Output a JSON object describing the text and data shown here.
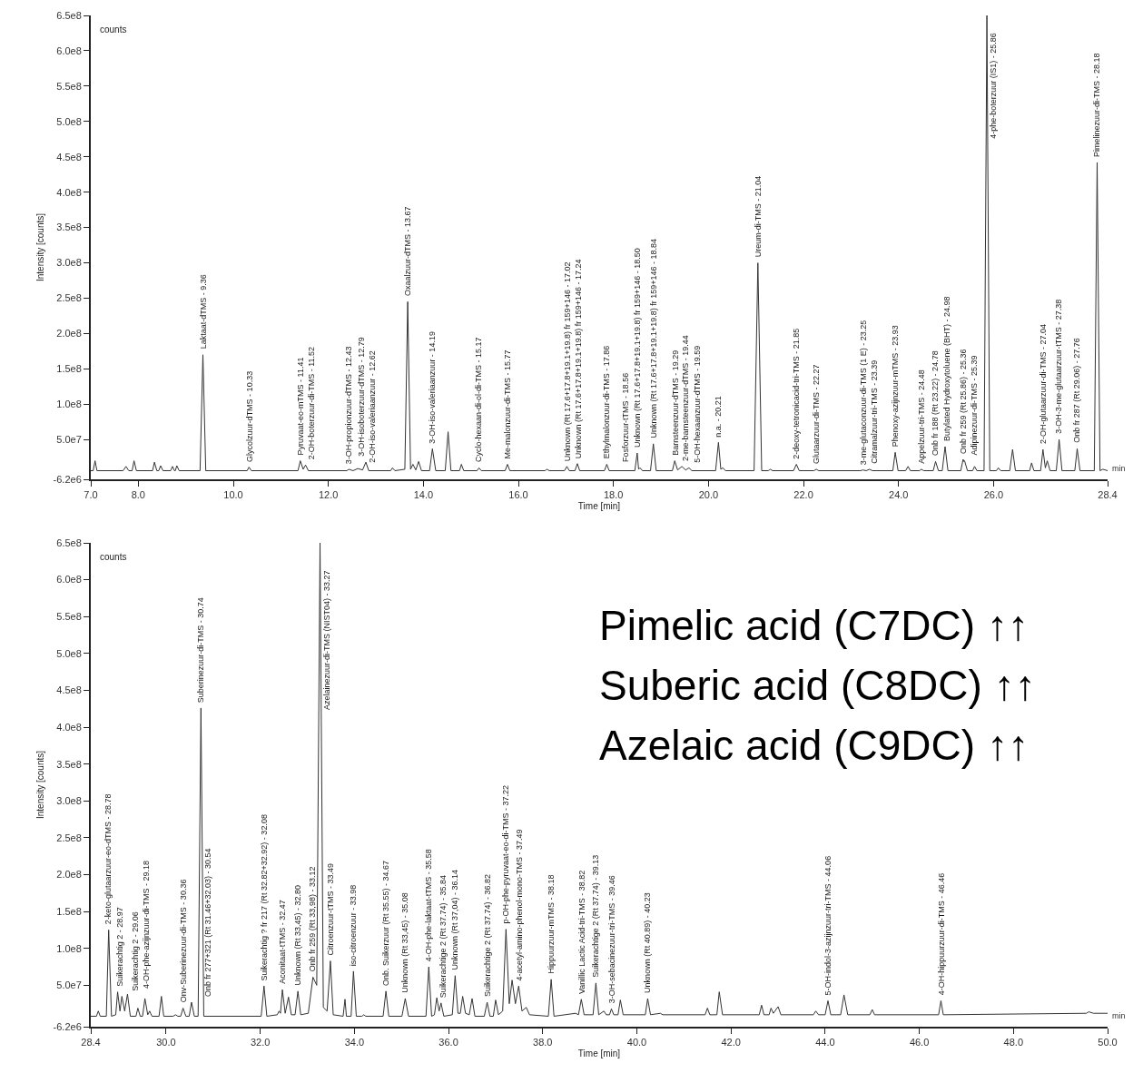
{
  "chart_data": [
    {
      "type": "line",
      "xlabel": "Time [min]",
      "ylabel": "Intensity [counts]",
      "xlim": [
        7,
        28.4
      ],
      "xticks": [
        {
          "value": 7,
          "label": "7.0"
        },
        {
          "value": 8,
          "label": "8.0"
        },
        {
          "value": 10,
          "label": "10.0"
        },
        {
          "value": 12,
          "label": "12.0"
        },
        {
          "value": 14,
          "label": "14.0"
        },
        {
          "value": 16,
          "label": "16.0"
        },
        {
          "value": 18,
          "label": "18.0"
        },
        {
          "value": 20,
          "label": "20.0"
        },
        {
          "value": 22,
          "label": "22.0"
        },
        {
          "value": 24,
          "label": "24.0"
        },
        {
          "value": 26,
          "label": "26.0"
        },
        28.4
      ],
      "ylim": [
        -6200000.0,
        650000000.0
      ],
      "yticks": [
        {
          "value": -6200000.0,
          "label": "-6.2e6"
        },
        {
          "value": 50000000.0,
          "label": "5.0e7"
        },
        {
          "value": 100000000.0,
          "label": "1.0e8"
        },
        {
          "value": 150000000.0,
          "label": "1.5e8"
        },
        {
          "value": 200000000.0,
          "label": "2.0e8"
        },
        {
          "value": 250000000.0,
          "label": "2.5e8"
        },
        {
          "value": 300000000.0,
          "label": "3.0e8"
        },
        {
          "value": 350000000.0,
          "label": "3.5e8"
        },
        {
          "value": 400000000.0,
          "label": "4.0e8"
        },
        {
          "value": 450000000.0,
          "label": "4.5e8"
        },
        {
          "value": 500000000.0,
          "label": "5.0e8"
        },
        {
          "value": 550000000.0,
          "label": "5.5e8"
        },
        {
          "value": 600000000.0,
          "label": "6.0e8"
        },
        {
          "value": 650000000.0,
          "label": "6.5e8"
        }
      ],
      "x": [
        7.0,
        7.05,
        7.09,
        7.13,
        7.68,
        7.74,
        7.8,
        7.87,
        7.91,
        7.96,
        8.3,
        8.34,
        8.39,
        8.43,
        8.47,
        8.52,
        8.68,
        8.72,
        8.76,
        8.78,
        8.81,
        8.86,
        9.3,
        9.36,
        9.42,
        10.29,
        10.33,
        10.38,
        11.36,
        11.41,
        11.47,
        11.52,
        11.58,
        12.39,
        12.43,
        12.52,
        12.62,
        12.72,
        12.79,
        12.85,
        13.31,
        13.35,
        13.4,
        13.61,
        13.67,
        13.73,
        13.78,
        13.84,
        13.9,
        13.96,
        14.13,
        14.19,
        14.26,
        14.46,
        14.52,
        14.58,
        14.76,
        14.8,
        14.85,
        15.13,
        15.17,
        15.22,
        15.72,
        15.77,
        15.82,
        16.56,
        16.6,
        16.65,
        16.97,
        17.02,
        17.07,
        17.19,
        17.24,
        17.29,
        17.81,
        17.86,
        17.91,
        18.45,
        18.5,
        18.53,
        18.56,
        18.61,
        18.78,
        18.84,
        18.9,
        19.24,
        19.29,
        19.35,
        19.44,
        19.52,
        19.59,
        19.65,
        20.15,
        20.21,
        20.26,
        20.3,
        20.36,
        20.96,
        21.04,
        21.12,
        21.26,
        21.3,
        21.35,
        21.79,
        21.85,
        21.91,
        22.22,
        22.27,
        22.32,
        23.2,
        23.25,
        23.32,
        23.39,
        23.45,
        23.88,
        23.93,
        23.99,
        24.15,
        24.2,
        24.25,
        24.44,
        24.48,
        24.53,
        24.73,
        24.78,
        24.84,
        24.92,
        24.98,
        25.04,
        25.31,
        25.36,
        25.375,
        25.39,
        25.45,
        25.56,
        25.6,
        25.65,
        25.8,
        25.86,
        25.92,
        26.06,
        26.1,
        26.15,
        26.34,
        26.4,
        26.46,
        26.76,
        26.8,
        26.85,
        26.99,
        27.04,
        27.09,
        27.13,
        27.19,
        27.32,
        27.38,
        27.44,
        27.71,
        27.76,
        27.82,
        28.12,
        28.18,
        28.24,
        28.3,
        28.4
      ],
      "series": [
        {
          "color": "#333333",
          "values": [
            6000000.0,
            6000000.0,
            20000000.0,
            6000000.0,
            6000000.0,
            12000000.0,
            6000000.0,
            6000000.0,
            20000000.0,
            6000000.0,
            6000000.0,
            18000000.0,
            6000000.0,
            6000000.0,
            13000000.0,
            6000000.0,
            6000000.0,
            12000000.0,
            6000000.0,
            6000000.0,
            13000000.0,
            6000000.0,
            6000000.0,
            170000000.0,
            6000000.0,
            6000000.0,
            11000000.0,
            6000000.0,
            6000000.0,
            20000000.0,
            8000000.0,
            14000000.0,
            6000000.0,
            6000000.0,
            8000000.0,
            6000000.0,
            9000000.0,
            7000000.0,
            18000000.0,
            6000000.0,
            6000000.0,
            10000000.0,
            6000000.0,
            8000000.0,
            245000000.0,
            8000000.0,
            15000000.0,
            7000000.0,
            19000000.0,
            6000000.0,
            6000000.0,
            37000000.0,
            6000000.0,
            6000000.0,
            61000000.0,
            6000000.0,
            6000000.0,
            15000000.0,
            6000000.0,
            6000000.0,
            10000000.0,
            6000000.0,
            6000000.0,
            15000000.0,
            6000000.0,
            6000000.0,
            8000000.0,
            6000000.0,
            6000000.0,
            12000000.0,
            6000000.0,
            6000000.0,
            16000000.0,
            6000000.0,
            6000000.0,
            15000000.0,
            6000000.0,
            6000000.0,
            31000000.0,
            8000000.0,
            10000000.0,
            6000000.0,
            6000000.0,
            44000000.0,
            6000000.0,
            6000000.0,
            20000000.0,
            7000000.0,
            12000000.0,
            7000000.0,
            10000000.0,
            6000000.0,
            6000000.0,
            46000000.0,
            8000000.0,
            10000000.0,
            6000000.0,
            6000000.0,
            300000000.0,
            6000000.0,
            6000000.0,
            8000000.0,
            6000000.0,
            6000000.0,
            15000000.0,
            6000000.0,
            6000000.0,
            8000000.0,
            6000000.0,
            6000000.0,
            7000000.0,
            6000000.0,
            8000000.0,
            6000000.0,
            6000000.0,
            32000000.0,
            6000000.0,
            6000000.0,
            12000000.0,
            6000000.0,
            6000000.0,
            8000000.0,
            6000000.0,
            6000000.0,
            19000000.0,
            6000000.0,
            6000000.0,
            40000000.0,
            6000000.0,
            6000000.0,
            22000000.0,
            19000000.0,
            20000000.0,
            6000000.0,
            6000000.0,
            12000000.0,
            6000000.0,
            6000000.0,
            650000000.0,
            6000000.0,
            6000000.0,
            10000000.0,
            6000000.0,
            6000000.0,
            36000000.0,
            6000000.0,
            6000000.0,
            17000000.0,
            6000000.0,
            6000000.0,
            36000000.0,
            10000000.0,
            20000000.0,
            6000000.0,
            6000000.0,
            50000000.0,
            6000000.0,
            6000000.0,
            37000000.0,
            6000000.0,
            6000000.0,
            442000000.0,
            6000000.0,
            8000000.0,
            6000000.0
          ]
        }
      ],
      "annotations": [
        "counts",
        "min",
        {
          "text": "Laktaat-dTMS - 9.36",
          "x": 9.36,
          "y": 170000000.0
        },
        {
          "text": "Glycolzuur-dTMS - 10.33",
          "x": 10.33,
          "y": 11000000.0
        },
        {
          "text": "Pyruvaat-eo-mTMS - 11.41",
          "x": 11.41,
          "y": 20000000.0
        },
        {
          "text": "2-OH-boterzuur-di-TMS - 11.52",
          "x": 11.52,
          "y": 14000000.0
        },
        {
          "text": "3-OH-propionzuur-dTMS - 12.43",
          "x": 12.43,
          "y": 8000000.0
        },
        {
          "text": "2-OH-iso-valeriaanzuur - 12.62",
          "x": 12.62,
          "y": 9000000.0
        },
        {
          "text": "3-OH-isoboterzuur-dTMS - 12.79",
          "x": 12.79,
          "y": 18000000.0
        },
        {
          "text": "Oxaalzuur-dTMS - 13.67",
          "x": 13.67,
          "y": 245000000.0
        },
        {
          "text": "3-OH-iso-valeriaanzuur - 14.19",
          "x": 14.19,
          "y": 37000000.0
        },
        {
          "text": "Cyclo-hexaan-di-ol-di-TMS - 15.17",
          "x": 15.17,
          "y": 10000000.0
        },
        {
          "text": "Me-malonzuur-di-TMS - 15.77",
          "x": 15.77,
          "y": 15000000.0
        },
        {
          "text": "Unknown (Rt 17.6+17.8+19.1+19.8) fr 159+146 - 17.02",
          "x": 17.02,
          "y": 12000000.0
        },
        {
          "text": "Unknown (Rt 17.6+17.8+19.1+19.8) fr 159+146 - 17.24",
          "x": 17.24,
          "y": 16000000.0
        },
        {
          "text": "Ethylmalonzuur-di-TMS - 17.86",
          "x": 17.86,
          "y": 15000000.0
        },
        {
          "text": "Unknown (Rt 17.6+17.8+19.1+19.8) fr 159+146 - 18.50",
          "x": 18.5,
          "y": 31000000.0
        },
        {
          "text": "Fosforzuur-tTMS - 18.56",
          "x": 18.56,
          "y": 10000000.0
        },
        {
          "text": "Unknown (Rt 17.6+17.8+19.1+19.8) fr 159+146 - 18.84",
          "x": 18.84,
          "y": 44000000.0
        },
        {
          "text": "Barnsteenzuur-dTMS - 19.29",
          "x": 19.29,
          "y": 20000000.0
        },
        {
          "text": "2-me-barnsteenzuur-dTMS - 19.44",
          "x": 19.44,
          "y": 12000000.0
        },
        {
          "text": "5-OH-hexaanzuur-dTMS - 19.59",
          "x": 19.59,
          "y": 10000000.0
        },
        {
          "text": "n.a. - 20.21",
          "x": 20.21,
          "y": 46000000.0
        },
        {
          "text": "Ureum-di-TMS - 21.04",
          "x": 21.04,
          "y": 300000000.0
        },
        {
          "text": "2-deoxy-tetronicacid-tri-TMS - 21.85",
          "x": 21.85,
          "y": 15000000.0
        },
        {
          "text": "Glutaarzuur-di-TMS - 22.27",
          "x": 22.27,
          "y": 8000000.0
        },
        {
          "text": "3-me-glutaconzuur-di-TMS (1 E) - 23.25",
          "x": 23.25,
          "y": 7000000.0
        },
        {
          "text": "Citramalzuur-tri-TMS - 23.39",
          "x": 23.39,
          "y": 8000000.0
        },
        {
          "text": "Phenoxy-azijnzuur-mTMS - 23.93",
          "x": 23.93,
          "y": 32000000.0
        },
        {
          "text": "Appelzuur-tri-TMS - 24.48",
          "x": 24.48,
          "y": 8000000.0
        },
        {
          "text": "Onb fr 188 (Rt 23.22) - 24.78",
          "x": 24.78,
          "y": 19000000.0
        },
        {
          "text": "Butylated Hydroxytoluene (BHT) - 24.98",
          "x": 24.98,
          "y": 40000000.0
        },
        {
          "text": "Onb fr 259 (Rt 25.86) - 25.36",
          "x": 25.36,
          "y": 22000000.0
        },
        {
          "text": "Adipinezuur-di-TMS - 25.39",
          "x": 25.39,
          "y": 20000000.0
        },
        {
          "text": "4-phe-boterzuur (IS1) - 25.86",
          "x": 25.86,
          "y": 468000000.0
        },
        {
          "text": "2-OH-glutaarzuur-di-TMS - 27.04",
          "x": 27.04,
          "y": 36000000.0
        },
        {
          "text": "3-OH-3-me-glutaarzuur-tTMS - 27.38",
          "x": 27.38,
          "y": 50000000.0
        },
        {
          "text": "Onb fr 287 (Rt 29.06) - 27.76",
          "x": 27.76,
          "y": 37000000.0
        },
        {
          "text": "Pimelinezuur-di-TMS - 28.18",
          "x": 28.18,
          "y": 442000000.0
        }
      ]
    },
    {
      "type": "line",
      "xlabel": "Time [min]",
      "ylabel": "Intensity [counts]",
      "xlim": [
        28.4,
        50
      ],
      "xticks": [
        28.4,
        {
          "value": 30,
          "label": "30.0"
        },
        {
          "value": 32,
          "label": "32.0"
        },
        {
          "value": 34,
          "label": "34.0"
        },
        {
          "value": 36,
          "label": "36.0"
        },
        {
          "value": 38,
          "label": "38.0"
        },
        {
          "value": 40,
          "label": "40.0"
        },
        {
          "value": 42,
          "label": "42.0"
        },
        {
          "value": 44,
          "label": "44.0"
        },
        {
          "value": 46,
          "label": "46.0"
        },
        {
          "value": 48,
          "label": "48.0"
        },
        {
          "value": 50,
          "label": "50.0"
        }
      ],
      "ylim": [
        -6200000.0,
        650000000.0
      ],
      "yticks": [
        {
          "value": -6200000.0,
          "label": "-6.2e6"
        },
        {
          "value": 50000000.0,
          "label": "5.0e7"
        },
        {
          "value": 100000000.0,
          "label": "1.0e8"
        },
        {
          "value": 150000000.0,
          "label": "1.5e8"
        },
        {
          "value": 200000000.0,
          "label": "2.0e8"
        },
        {
          "value": 250000000.0,
          "label": "2.5e8"
        },
        {
          "value": 300000000.0,
          "label": "3.0e8"
        },
        {
          "value": 350000000.0,
          "label": "3.5e8"
        },
        {
          "value": 400000000.0,
          "label": "4.0e8"
        },
        {
          "value": 450000000.0,
          "label": "4.5e8"
        },
        {
          "value": 500000000.0,
          "label": "5.0e8"
        },
        {
          "value": 550000000.0,
          "label": "5.5e8"
        },
        {
          "value": 600000000.0,
          "label": "6.0e8"
        },
        {
          "value": 650000000.0,
          "label": "6.5e8"
        }
      ],
      "x": [
        28.4,
        28.52,
        28.56,
        28.6,
        28.73,
        28.78,
        28.84,
        28.93,
        28.97,
        29.02,
        29.06,
        29.12,
        29.18,
        29.24,
        29.36,
        29.4,
        29.45,
        29.5,
        29.55,
        29.61,
        29.65,
        29.7,
        29.85,
        29.9,
        29.95,
        30.15,
        30.2,
        30.25,
        30.31,
        30.36,
        30.42,
        30.49,
        30.54,
        30.6,
        30.68,
        30.74,
        30.8,
        32.02,
        32.08,
        32.14,
        32.36,
        32.4,
        32.43,
        32.47,
        32.53,
        32.6,
        32.66,
        32.74,
        32.8,
        32.86,
        33.02,
        33.12,
        33.2,
        33.27,
        33.34,
        33.42,
        33.49,
        33.55,
        33.76,
        33.8,
        33.83,
        33.93,
        33.98,
        34.04,
        34.16,
        34.2,
        34.24,
        34.61,
        34.67,
        34.73,
        35.01,
        35.08,
        35.15,
        35.52,
        35.58,
        35.64,
        35.7,
        35.75,
        35.8,
        35.84,
        35.9,
        36.08,
        36.14,
        36.2,
        36.25,
        36.3,
        36.36,
        36.44,
        36.5,
        36.56,
        36.76,
        36.82,
        36.88,
        36.95,
        37.0,
        37.06,
        37.15,
        37.22,
        37.29,
        37.35,
        37.42,
        37.49,
        37.56,
        37.65,
        37.72,
        38.12,
        38.18,
        38.24,
        38.7,
        38.76,
        38.82,
        38.88,
        39.07,
        39.13,
        39.19,
        39.3,
        39.35,
        39.42,
        39.46,
        39.51,
        39.6,
        39.65,
        39.71,
        40.18,
        40.23,
        40.29,
        40.5,
        40.55,
        41.45,
        41.5,
        41.55,
        41.7,
        41.75,
        41.82,
        42.6,
        42.65,
        42.7,
        42.81,
        42.85,
        42.9,
        43.0,
        43.06,
        43.75,
        43.8,
        43.86,
        44.0,
        44.06,
        44.12,
        44.33,
        44.4,
        44.48,
        44.95,
        45.0,
        45.05,
        46.41,
        46.46,
        46.51,
        49.55,
        49.6,
        49.7,
        50.0
      ],
      "series": [
        {
          "color": "#333333",
          "values": [
            8000000.0,
            8000000.0,
            15000000.0,
            8000000.0,
            8000000.0,
            125000000.0,
            8000000.0,
            10000000.0,
            41000000.0,
            15000000.0,
            35000000.0,
            15000000.0,
            38000000.0,
            8000000.0,
            8000000.0,
            19000000.0,
            8000000.0,
            8000000.0,
            32000000.0,
            10000000.0,
            15000000.0,
            8000000.0,
            8000000.0,
            35000000.0,
            8000000.0,
            8000000.0,
            10000000.0,
            8000000.0,
            8000000.0,
            19000000.0,
            8000000.0,
            8000000.0,
            27000000.0,
            8000000.0,
            8000000.0,
            426000000.0,
            8000000.0,
            8000000.0,
            49000000.0,
            8000000.0,
            10000000.0,
            15000000.0,
            12000000.0,
            44000000.0,
            12000000.0,
            34000000.0,
            10000000.0,
            10000000.0,
            42000000.0,
            10000000.0,
            12000000.0,
            61000000.0,
            50000000.0,
            650000000.0,
            20000000.0,
            15000000.0,
            83000000.0,
            10000000.0,
            8000000.0,
            31000000.0,
            8000000.0,
            8000000.0,
            69000000.0,
            8000000.0,
            8000000.0,
            10000000.0,
            8000000.0,
            8000000.0,
            42000000.0,
            8000000.0,
            8000000.0,
            32000000.0,
            8000000.0,
            8000000.0,
            75000000.0,
            8000000.0,
            10000000.0,
            33000000.0,
            15000000.0,
            26000000.0,
            8000000.0,
            10000000.0,
            63000000.0,
            12000000.0,
            12000000.0,
            35000000.0,
            12000000.0,
            10000000.0,
            32000000.0,
            8000000.0,
            8000000.0,
            27000000.0,
            8000000.0,
            8000000.0,
            30000000.0,
            10000000.0,
            15000000.0,
            126000000.0,
            25000000.0,
            57000000.0,
            25000000.0,
            49000000.0,
            15000000.0,
            20000000.0,
            10000000.0,
            8000000.0,
            58000000.0,
            8000000.0,
            12000000.0,
            10000000.0,
            31000000.0,
            10000000.0,
            10000000.0,
            53000000.0,
            10000000.0,
            15000000.0,
            10000000.0,
            10000000.0,
            18000000.0,
            10000000.0,
            10000000.0,
            30000000.0,
            10000000.0,
            10000000.0,
            32000000.0,
            10000000.0,
            12000000.0,
            10000000.0,
            10000000.0,
            19000000.0,
            10000000.0,
            10000000.0,
            41000000.0,
            10000000.0,
            10000000.0,
            23000000.0,
            10000000.0,
            10000000.0,
            19000000.0,
            12000000.0,
            21000000.0,
            10000000.0,
            10000000.0,
            15000000.0,
            10000000.0,
            10000000.0,
            29000000.0,
            10000000.0,
            10000000.0,
            37000000.0,
            10000000.0,
            10000000.0,
            17000000.0,
            10000000.0,
            10000000.0,
            29000000.0,
            10000000.0,
            12000000.0,
            14000000.0,
            12000000.0,
            12000000.0
          ]
        }
      ],
      "annotations": [
        "counts",
        "min",
        "Pimelic acid (C7DC) ↑↑",
        "Suberic acid (C8DC) ↑↑",
        "Azelaic acid (C9DC) ↑↑",
        {
          "text": "2-keto-glutaarzuur-eo-dTMS - 28.78",
          "x": 28.78,
          "y": 125000000.0
        },
        {
          "text": "Suikerachtig 2 - 28.97",
          "x": 28.97,
          "y": 41000000.0
        },
        {
          "text": "Suikerachtig 2 - 29.06",
          "x": 29.06,
          "y": 35000000.0
        },
        {
          "text": "4-OH-phe-azijnzuur-di-TMS - 29.18",
          "x": 29.18,
          "y": 38000000.0
        },
        {
          "text": "Onv-Suberinezuur-di-TMS - 30.36",
          "x": 30.36,
          "y": 19000000.0
        },
        {
          "text": "Onb fr 277+321 (Rt 31.46+32.03) - 30.54",
          "x": 30.54,
          "y": 27000000.0
        },
        {
          "text": "Suberinezuur-di-TMS - 30.74",
          "x": 30.74,
          "y": 426000000.0
        },
        {
          "text": "Suikerachtig ? fr 217 (Rt 32.82+32.92) - 32.08",
          "x": 32.08,
          "y": 49000000.0
        },
        {
          "text": "Aconitaat-tTMS - 32.47",
          "x": 32.47,
          "y": 44000000.0
        },
        {
          "text": "Unknown (Rt 33,45) - 32.80",
          "x": 32.8,
          "y": 42000000.0
        },
        {
          "text": "Onb fr 259 (Rt 33,98) - 33.12",
          "x": 33.12,
          "y": 61000000.0
        },
        {
          "text": "Azelainezuur-di-TMS (NIST04) - 33.27",
          "x": 33.27,
          "y": 416000000.0
        },
        {
          "text": "Citroenzuur-tTMS - 33.49",
          "x": 33.49,
          "y": 83000000.0
        },
        {
          "text": "iso-citroenzuur - 33.98",
          "x": 33.98,
          "y": 69000000.0
        },
        {
          "text": "Onb. Suikerzuur (Rt 35.55) - 34.67",
          "x": 34.67,
          "y": 42000000.0
        },
        {
          "text": "Unknown (Rt 33,45) - 35.08",
          "x": 35.08,
          "y": 32000000.0
        },
        {
          "text": "4-OH-phe-laktaat-tTMS - 35.58",
          "x": 35.58,
          "y": 75000000.0
        },
        {
          "text": "Suikerachtige 2 (Rt 37.74) - 35.84",
          "x": 35.84,
          "y": 26000000.0
        },
        {
          "text": "Unknown (Rt 37,04) - 36.14",
          "x": 36.14,
          "y": 63000000.0
        },
        {
          "text": "Suikerachtige 2 (Rt 37.74) - 36.82",
          "x": 36.82,
          "y": 27000000.0
        },
        {
          "text": "p-OH-phe-pyruvaat-eo-di-TMS - 37.22",
          "x": 37.22,
          "y": 126000000.0
        },
        {
          "text": "4-acetyl-amino-phenol-mono-TMS - 37.49",
          "x": 37.49,
          "y": 49000000.0
        },
        {
          "text": "Hippuurzuur-mTMS - 38.18",
          "x": 38.18,
          "y": 58000000.0
        },
        {
          "text": "Vanillic Lactic Acid-tri-TMS - 38.82",
          "x": 38.82,
          "y": 31000000.0
        },
        {
          "text": "Suikerachtige 2 (Rt 37.74) - 39.13",
          "x": 39.13,
          "y": 53000000.0
        },
        {
          "text": "3-OH-sebacinezuur-tri-TMS - 39.46",
          "x": 39.46,
          "y": 18000000.0
        },
        {
          "text": "Unknown (Rt 40.89) - 40.23",
          "x": 40.23,
          "y": 32000000.0
        },
        {
          "text": "5-OH-indol-3-azijnzuur-tri-TMS - 44.06",
          "x": 44.06,
          "y": 29000000.0
        },
        {
          "text": "4-OH-hippuurzuur-di-TMS - 46.46",
          "x": 46.46,
          "y": 29000000.0
        }
      ]
    }
  ]
}
